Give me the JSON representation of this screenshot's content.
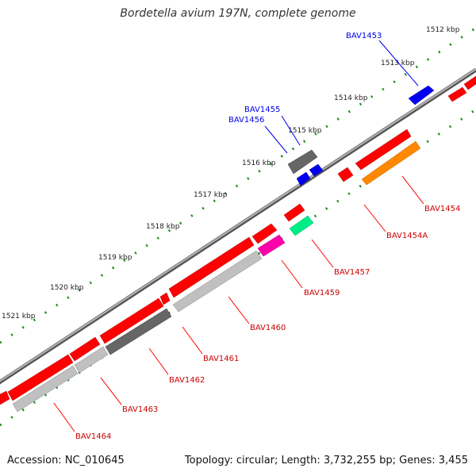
{
  "title": "Bordetella avium 197N, complete genome",
  "footer": {
    "accession": "Accession: NC_010645",
    "summary": "Topology: circular; Length: 3,732,255 bp; Genes: 3,455"
  },
  "kbp_ticks": [
    "1512 kbp",
    "1513 kbp",
    "1514 kbp",
    "1515 kbp",
    "1516 kbp",
    "1517 kbp",
    "1518 kbp",
    "1519 kbp",
    "1520 kbp",
    "1521 kbp"
  ],
  "gene_labels": [
    "BAV1453",
    "BAV1455",
    "BAV1456",
    "BAV1454",
    "BAV1454A",
    "BAV1457",
    "BAV1459",
    "BAV1460",
    "BAV1461",
    "BAV1462",
    "BAV1463",
    "BAV1464"
  ],
  "colors": {
    "forward": "#ff0000",
    "gray": "#666666",
    "lightgray": "#c0c0c0",
    "blue": "#0000ee",
    "orange": "#ff8800",
    "teal": "#00ee88",
    "magenta": "#ff00aa",
    "backbone": "#888888",
    "ticks": "#1a8a1a"
  }
}
